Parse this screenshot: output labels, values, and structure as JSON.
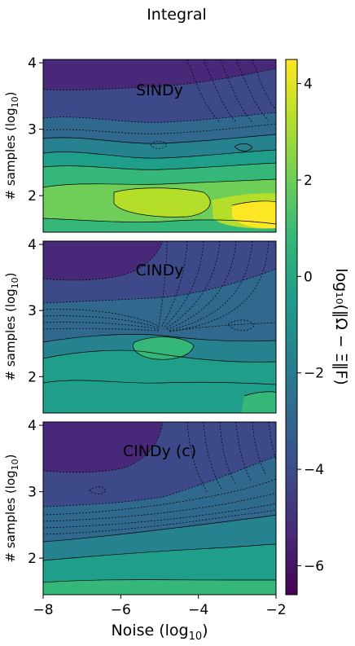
{
  "figure": {
    "title": "Integral",
    "xlabel_main": "Noise (log",
    "xlabel_sub": "10",
    "xlabel_close": ")",
    "ylabel_main": "# samples (log",
    "ylabel_sub": "10",
    "ylabel_close": ")",
    "colorbar_label": "log₁₀(‖Ω − Ξ‖F)"
  },
  "chart_data": [
    {
      "type": "heatmap",
      "subplot": "top",
      "annotation": "SINDy",
      "xlim": [
        -8,
        -2
      ],
      "ylim": [
        1.45,
        4.05
      ],
      "xticks": [
        -8,
        -6,
        -4,
        -2
      ],
      "yticks": [
        2,
        3,
        4
      ],
      "yticklabels": [
        "2",
        "3",
        "4"
      ],
      "contour_style": "filled with black contour lines (solid and dashed)",
      "grid": false
    },
    {
      "type": "heatmap",
      "subplot": "middle",
      "annotation": "CINDy",
      "xlim": [
        -8,
        -2
      ],
      "ylim": [
        1.45,
        4.05
      ],
      "yticks": [
        2,
        3,
        4
      ],
      "yticklabels": [
        "2",
        "3",
        "4"
      ],
      "contour_style": "filled with black contour lines (solid and dashed)",
      "grid": false
    },
    {
      "type": "heatmap",
      "subplot": "bottom",
      "annotation": "CINDy (c)",
      "xlim": [
        -8,
        -2
      ],
      "ylim": [
        1.45,
        4.05
      ],
      "xticks": [
        -8,
        -6,
        -4,
        -2
      ],
      "xticklabels": [
        "−8",
        "−6",
        "−4",
        "−2"
      ],
      "yticks": [
        2,
        3,
        4
      ],
      "yticklabels": [
        "2",
        "3",
        "4"
      ],
      "contour_style": "filled with black contour lines (solid and dashed)",
      "grid": false
    }
  ],
  "colorbar": {
    "colormap": "viridis",
    "range": [
      -6.6,
      4.5
    ],
    "ticks": [
      4,
      2,
      0,
      -2,
      -4,
      -6
    ],
    "ticklabels": [
      "4",
      "2",
      "0",
      "−2",
      "−4",
      "−6"
    ],
    "colors": [
      "#440154",
      "#482878",
      "#3e4989",
      "#31688e",
      "#26828e",
      "#1f9e89",
      "#35b779",
      "#6ece58",
      "#b5de2b",
      "#fde725"
    ]
  }
}
